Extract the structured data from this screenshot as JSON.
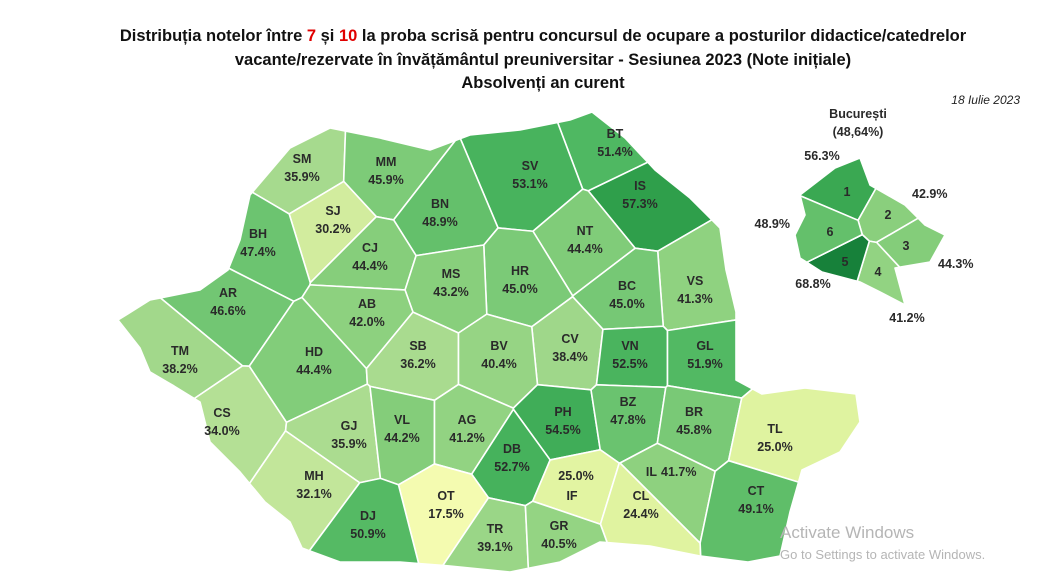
{
  "header": {
    "title_line1": [
      "Distribuția notelor între ",
      "7",
      " și ",
      "10",
      " la proba scrisă pentru concursul de ocupare a posturilor didactice/catedrelor"
    ],
    "title_line2": "vacante/rezervate în învățământul preuniversitar - Sesiunea 2023 (Note inițiale)",
    "title_line3": "Absolvenți an curent",
    "date": "18 Iulie 2023"
  },
  "counties": [
    {
      "code": "BT",
      "value": "51.4%",
      "color": "#4fb862"
    },
    {
      "code": "SM",
      "value": "35.9%",
      "color": "#a6da8e"
    },
    {
      "code": "MM",
      "value": "45.9%",
      "color": "#7dcb78"
    },
    {
      "code": "SV",
      "value": "53.1%",
      "color": "#48b35d"
    },
    {
      "code": "IS",
      "value": "57.3%",
      "color": "#2f9f4b"
    },
    {
      "code": "SJ",
      "value": "30.2%",
      "color": "#d2ec9e"
    },
    {
      "code": "BN",
      "value": "48.9%",
      "color": "#64c06b"
    },
    {
      "code": "BH",
      "value": "47.4%",
      "color": "#6cc470"
    },
    {
      "code": "CJ",
      "value": "44.4%",
      "color": "#86ce7b"
    },
    {
      "code": "NT",
      "value": "44.4%",
      "color": "#80cc79"
    },
    {
      "code": "HR",
      "value": "45.0%",
      "color": "#7bca77"
    },
    {
      "code": "VS",
      "value": "41.3%",
      "color": "#8fd280"
    },
    {
      "code": "AR",
      "value": "46.6%",
      "color": "#72c673"
    },
    {
      "code": "MS",
      "value": "43.2%",
      "color": "#88cf7c"
    },
    {
      "code": "BC",
      "value": "45.0%",
      "color": "#76c875"
    },
    {
      "code": "AB",
      "value": "42.0%",
      "color": "#8dd17f"
    },
    {
      "code": "CV",
      "value": "38.4%",
      "color": "#9fd78a"
    },
    {
      "code": "TM",
      "value": "38.2%",
      "color": "#a2d88b"
    },
    {
      "code": "HD",
      "value": "44.4%",
      "color": "#82cd7a"
    },
    {
      "code": "SB",
      "value": "36.2%",
      "color": "#a9db8f"
    },
    {
      "code": "BV",
      "value": "40.4%",
      "color": "#96d484"
    },
    {
      "code": "VN",
      "value": "52.5%",
      "color": "#4ab45e"
    },
    {
      "code": "GL",
      "value": "51.9%",
      "color": "#52b963"
    },
    {
      "code": "CS",
      "value": "34.0%",
      "color": "#b4e095"
    },
    {
      "code": "GJ",
      "value": "35.9%",
      "color": "#abdc90"
    },
    {
      "code": "VL",
      "value": "44.2%",
      "color": "#84cd7a"
    },
    {
      "code": "AG",
      "value": "41.2%",
      "color": "#92d382"
    },
    {
      "code": "PH",
      "value": "54.5%",
      "color": "#40ad58"
    },
    {
      "code": "BZ",
      "value": "47.8%",
      "color": "#6ac36f"
    },
    {
      "code": "BR",
      "value": "45.8%",
      "color": "#79c976"
    },
    {
      "code": "TL",
      "value": "25.0%",
      "color": "#dff3a0"
    },
    {
      "code": "DB",
      "value": "52.7%",
      "color": "#46b25c"
    },
    {
      "code": "IL",
      "value": "41.7%",
      "color": "#8ed17f"
    },
    {
      "code": "MH",
      "value": "32.1%",
      "color": "#c2e69a"
    },
    {
      "code": "IF",
      "value": "25.0%",
      "color": "#e2f4a2"
    },
    {
      "code": "CL",
      "value": "24.4%",
      "color": "#e0f3a0"
    },
    {
      "code": "OT",
      "value": "17.5%",
      "color": "#f4fbb0"
    },
    {
      "code": "DJ",
      "value": "50.9%",
      "color": "#55ba64"
    },
    {
      "code": "TR",
      "value": "39.1%",
      "color": "#9ad687"
    },
    {
      "code": "GR",
      "value": "40.5%",
      "color": "#94d483"
    },
    {
      "code": "CT",
      "value": "49.1%",
      "color": "#5fbe69"
    }
  ],
  "bucuresti": {
    "name": "București",
    "value": "(48,64%)",
    "sectors": [
      {
        "label": "1",
        "value": "56.3%",
        "color": "#3aa852"
      },
      {
        "label": "2",
        "value": "42.9%",
        "color": "#8acf7d"
      },
      {
        "label": "3",
        "value": "44.3%",
        "color": "#84cd7a"
      },
      {
        "label": "4",
        "value": "41.2%",
        "color": "#92d382"
      },
      {
        "label": "5",
        "value": "68.8%",
        "color": "#17813a"
      },
      {
        "label": "6",
        "value": "48.9%",
        "color": "#64c06b"
      }
    ]
  },
  "watermark": {
    "line1": "Activate Windows",
    "line2": "Go to Settings to activate Windows."
  }
}
